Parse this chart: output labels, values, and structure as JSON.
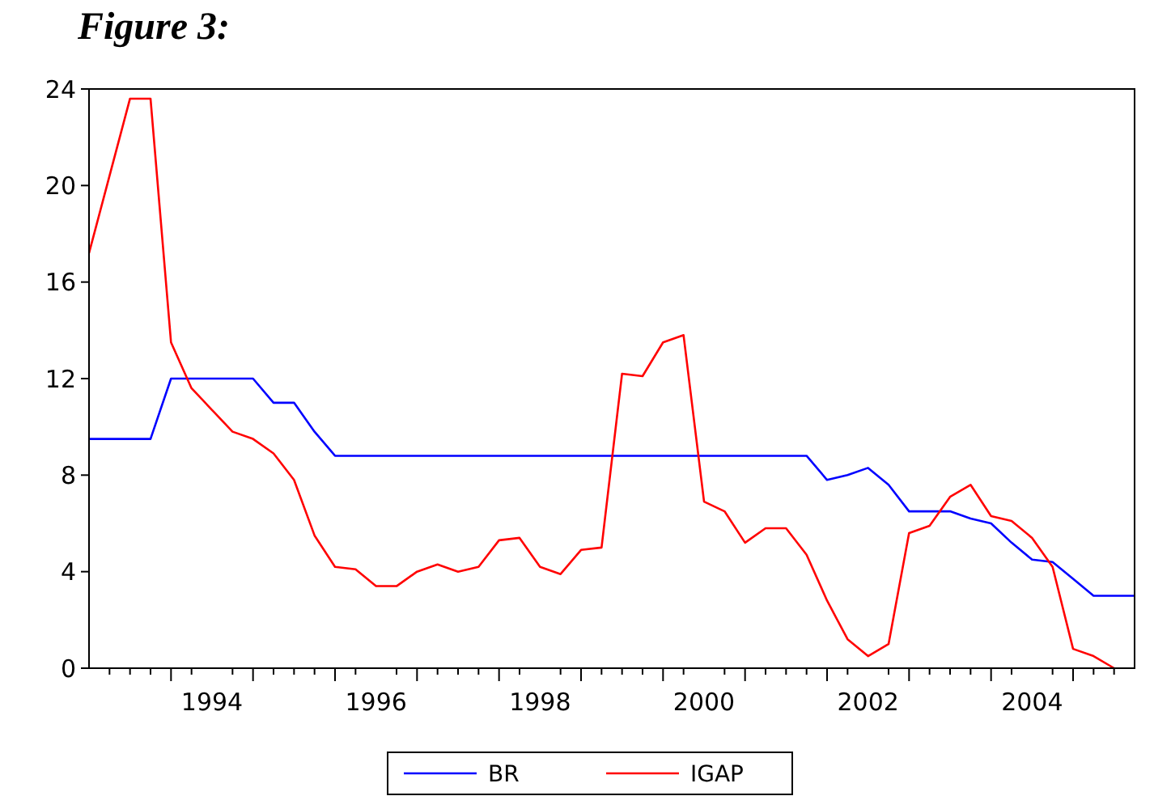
{
  "chart_data": {
    "type": "line",
    "title": "Figure 3:",
    "x": [
      1993,
      1993.25,
      1993.5,
      1993.75,
      1994,
      1994.25,
      1994.5,
      1994.75,
      1995,
      1995.25,
      1995.5,
      1995.75,
      1996,
      1996.25,
      1996.5,
      1996.75,
      1997,
      1997.25,
      1997.5,
      1997.75,
      1998,
      1998.25,
      1998.5,
      1998.75,
      1999,
      1999.25,
      1999.5,
      1999.75,
      2000,
      2000.25,
      2000.5,
      2000.75,
      2001,
      2001.25,
      2001.5,
      2001.75,
      2002,
      2002.25,
      2002.5,
      2002.75,
      2003,
      2003.25,
      2003.5,
      2003.75,
      2004,
      2004.25,
      2004.5,
      2004.75,
      2005,
      2005.25,
      2005.5,
      2005.75
    ],
    "series": [
      {
        "name": "BR",
        "color": "#0000ff",
        "values": [
          9.5,
          9.5,
          9.5,
          9.5,
          12,
          12,
          12,
          12,
          12,
          11,
          11,
          9.8,
          8.8,
          8.8,
          8.8,
          8.8,
          8.8,
          8.8,
          8.8,
          8.8,
          8.8,
          8.8,
          8.8,
          8.8,
          8.8,
          8.8,
          8.8,
          8.8,
          8.8,
          8.8,
          8.8,
          8.8,
          8.8,
          8.8,
          8.8,
          8.8,
          7.8,
          8.0,
          8.3,
          7.6,
          6.5,
          6.5,
          6.5,
          6.2,
          6.0,
          5.2,
          4.5,
          4.4,
          3.7,
          3.0,
          3.0,
          3.0
        ]
      },
      {
        "name": "IGAP",
        "color": "#ff0000",
        "values": [
          17.2,
          20.4,
          23.6,
          23.6,
          13.5,
          11.6,
          10.7,
          9.8,
          9.5,
          8.9,
          7.8,
          5.5,
          4.2,
          4.1,
          3.4,
          3.4,
          4.0,
          4.3,
          4.0,
          4.2,
          5.3,
          5.4,
          4.2,
          3.9,
          4.9,
          5.0,
          12.2,
          12.1,
          13.5,
          13.8,
          6.9,
          6.5,
          5.2,
          5.8,
          5.8,
          4.7,
          2.8,
          1.2,
          0.5,
          1.0,
          5.6,
          5.9,
          7.1,
          7.6,
          6.3,
          6.1,
          5.4,
          4.2,
          0.8,
          0.5,
          0.0,
          null
        ]
      }
    ],
    "xlim": [
      1993,
      2005.75
    ],
    "xticks": [
      {
        "value": 1993.25,
        "label": null
      },
      {
        "value": 1993.5,
        "label": null
      },
      {
        "value": 1993.75,
        "label": null
      },
      {
        "value": 1994,
        "label": null
      },
      {
        "value": 1994.25,
        "label": null
      },
      {
        "value": 1994.5,
        "label": "1994"
      },
      {
        "value": 1994.75,
        "label": null
      },
      {
        "value": 1995,
        "label": null
      },
      {
        "value": 1995.25,
        "label": null
      },
      {
        "value": 1995.5,
        "label": null
      },
      {
        "value": 1995.75,
        "label": null
      },
      {
        "value": 1996,
        "label": null
      },
      {
        "value": 1996.25,
        "label": null
      },
      {
        "value": 1996.5,
        "label": "1996"
      },
      {
        "value": 1996.75,
        "label": null
      },
      {
        "value": 1997,
        "label": null
      },
      {
        "value": 1997.25,
        "label": null
      },
      {
        "value": 1997.5,
        "label": null
      },
      {
        "value": 1997.75,
        "label": null
      },
      {
        "value": 1998,
        "label": null
      },
      {
        "value": 1998.25,
        "label": null
      },
      {
        "value": 1998.5,
        "label": "1998"
      },
      {
        "value": 1998.75,
        "label": null
      },
      {
        "value": 1999,
        "label": null
      },
      {
        "value": 1999.25,
        "label": null
      },
      {
        "value": 1999.5,
        "label": null
      },
      {
        "value": 1999.75,
        "label": null
      },
      {
        "value": 2000,
        "label": null
      },
      {
        "value": 2000.25,
        "label": null
      },
      {
        "value": 2000.5,
        "label": "2000"
      },
      {
        "value": 2000.75,
        "label": null
      },
      {
        "value": 2001,
        "label": null
      },
      {
        "value": 2001.25,
        "label": null
      },
      {
        "value": 2001.5,
        "label": null
      },
      {
        "value": 2001.75,
        "label": null
      },
      {
        "value": 2002,
        "label": null
      },
      {
        "value": 2002.25,
        "label": null
      },
      {
        "value": 2002.5,
        "label": "2002"
      },
      {
        "value": 2002.75,
        "label": null
      },
      {
        "value": 2003,
        "label": null
      },
      {
        "value": 2003.25,
        "label": null
      },
      {
        "value": 2003.5,
        "label": null
      },
      {
        "value": 2003.75,
        "label": null
      },
      {
        "value": 2004,
        "label": null
      },
      {
        "value": 2004.25,
        "label": null
      },
      {
        "value": 2004.5,
        "label": "2004"
      },
      {
        "value": 2004.75,
        "label": null
      },
      {
        "value": 2005,
        "label": null
      },
      {
        "value": 2005.25,
        "label": null
      },
      {
        "value": 2005.5,
        "label": null
      }
    ],
    "ylim": [
      0,
      24
    ],
    "yticks": [
      0,
      4,
      8,
      12,
      16,
      20,
      24
    ],
    "legend": "bottom",
    "marker": "none",
    "line_style": "solid",
    "grid": false
  }
}
